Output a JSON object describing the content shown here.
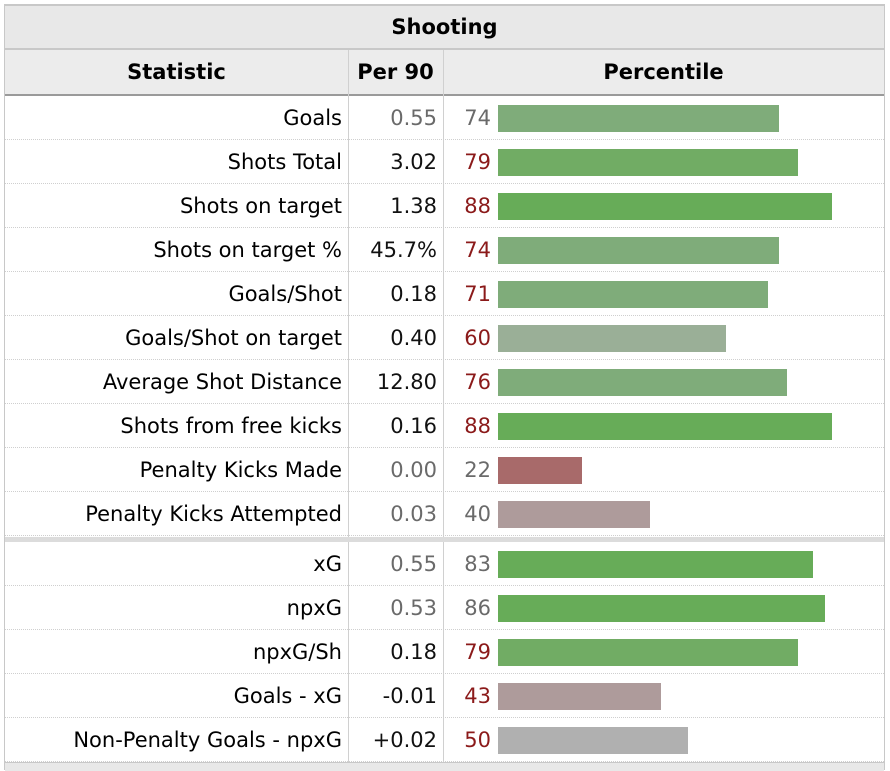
{
  "section": {
    "title": "Shooting"
  },
  "headers": {
    "statistic": "Statistic",
    "per90": "Per 90",
    "percentile": "Percentile"
  },
  "colors": {
    "high": "#67ac58",
    "good": "#7fac7a",
    "mid_good": "#9aaf97",
    "neutral": "#b0b0b0",
    "low_mid": "#ae9b9b",
    "low": "#a86a6a"
  },
  "groups": [
    {
      "rows": [
        {
          "label": "Goals",
          "per90": "0.55",
          "percentile": "74",
          "per90_style": "muted",
          "pct_style": "muted",
          "color": "#7fac7a"
        },
        {
          "label": "Shots Total",
          "per90": "3.02",
          "percentile": "79",
          "per90_style": "dark",
          "pct_style": "red",
          "color": "#71ac64"
        },
        {
          "label": "Shots on target",
          "per90": "1.38",
          "percentile": "88",
          "per90_style": "dark",
          "pct_style": "red",
          "color": "#67ac58"
        },
        {
          "label": "Shots on target %",
          "per90": "45.7%",
          "percentile": "74",
          "per90_style": "dark",
          "pct_style": "red",
          "color": "#7fac7a"
        },
        {
          "label": "Goals/Shot",
          "per90": "0.18",
          "percentile": "71",
          "per90_style": "dark",
          "pct_style": "red",
          "color": "#7fac7a"
        },
        {
          "label": "Goals/Shot on target",
          "per90": "0.40",
          "percentile": "60",
          "per90_style": "dark",
          "pct_style": "red",
          "color": "#9aaf97"
        },
        {
          "label": "Average Shot Distance",
          "per90": "12.80",
          "percentile": "76",
          "per90_style": "dark",
          "pct_style": "red",
          "color": "#7fac7a"
        },
        {
          "label": "Shots from free kicks",
          "per90": "0.16",
          "percentile": "88",
          "per90_style": "dark",
          "pct_style": "red",
          "color": "#67ac58"
        },
        {
          "label": "Penalty Kicks Made",
          "per90": "0.00",
          "percentile": "22",
          "per90_style": "muted",
          "pct_style": "muted",
          "color": "#a86a6a"
        },
        {
          "label": "Penalty Kicks Attempted",
          "per90": "0.03",
          "percentile": "40",
          "per90_style": "muted",
          "pct_style": "muted",
          "color": "#ae9b9b"
        }
      ]
    },
    {
      "rows": [
        {
          "label": "xG",
          "per90": "0.55",
          "percentile": "83",
          "per90_style": "muted",
          "pct_style": "muted",
          "color": "#67ac58"
        },
        {
          "label": "npxG",
          "per90": "0.53",
          "percentile": "86",
          "per90_style": "muted",
          "pct_style": "muted",
          "color": "#67ac58"
        },
        {
          "label": "npxG/Sh",
          "per90": "0.18",
          "percentile": "79",
          "per90_style": "dark",
          "pct_style": "red",
          "color": "#71ac64"
        },
        {
          "label": "Goals - xG",
          "per90": "-0.01",
          "percentile": "43",
          "per90_style": "dark",
          "pct_style": "red",
          "color": "#ae9b9b"
        },
        {
          "label": "Non-Penalty Goals - npxG",
          "per90": "+0.02",
          "percentile": "50",
          "per90_style": "dark",
          "pct_style": "red",
          "color": "#b0b0b0"
        }
      ]
    }
  ]
}
